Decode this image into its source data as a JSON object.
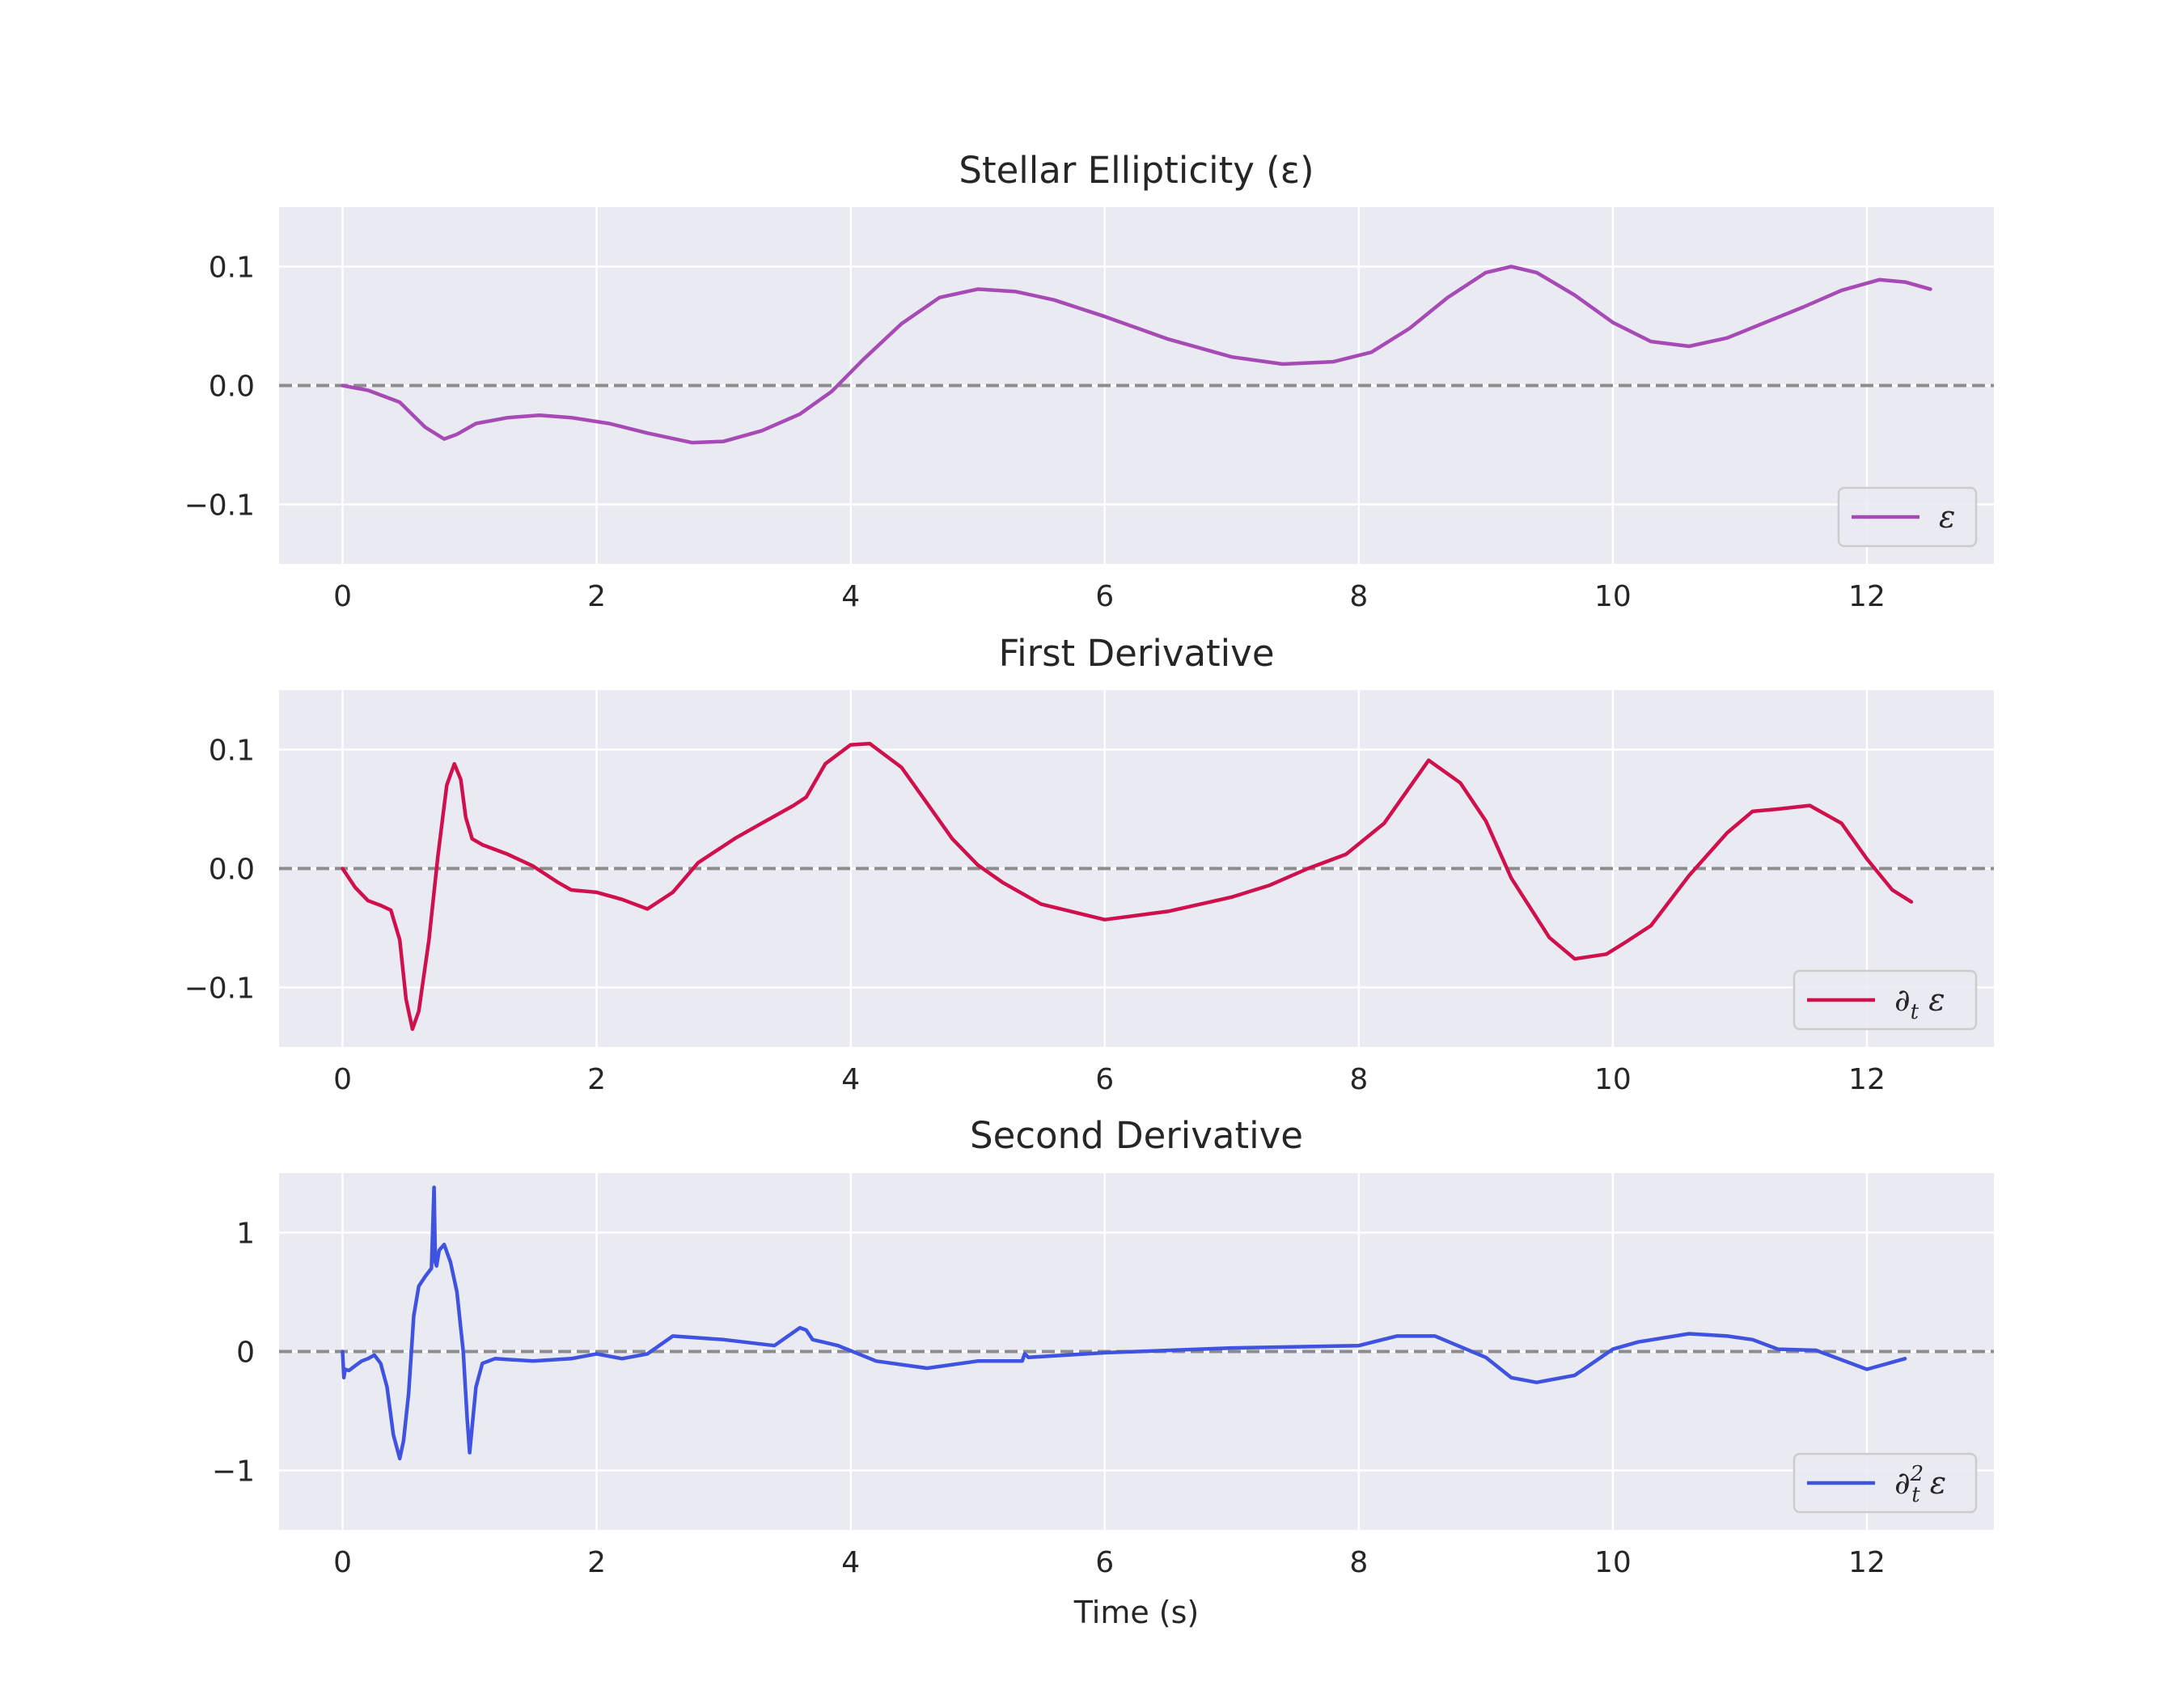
{
  "chart_data": [
    {
      "type": "line",
      "title": "Stellar Ellipticity (ε)",
      "xlabel": "",
      "ylabel": "",
      "xlim": [
        -0.5,
        13.0
      ],
      "ylim": [
        -0.15,
        0.15
      ],
      "xticks": [
        0,
        2,
        4,
        6,
        8,
        10,
        12
      ],
      "yticks": [
        -0.1,
        0.0,
        0.1
      ],
      "ytick_labels": [
        "−0.1",
        "0.0",
        "0.1"
      ],
      "grid": true,
      "reference_line": {
        "y": 0,
        "style": "dashed",
        "color": "#8c8c8c"
      },
      "legend": {
        "placement": "lower-right",
        "label": "ε"
      },
      "series": [
        {
          "name": "ε",
          "color": "#a64bb5",
          "x": [
            0,
            0.2,
            0.45,
            0.65,
            0.8,
            0.9,
            1.05,
            1.3,
            1.55,
            1.8,
            2.1,
            2.4,
            2.75,
            3.0,
            3.3,
            3.6,
            3.85,
            4.1,
            4.4,
            4.7,
            5.0,
            5.3,
            5.6,
            6.0,
            6.5,
            7.0,
            7.4,
            7.8,
            8.1,
            8.4,
            8.7,
            9.0,
            9.2,
            9.4,
            9.7,
            10.0,
            10.3,
            10.6,
            10.9,
            11.2,
            11.5,
            11.8,
            12.1,
            12.3,
            12.5
          ],
          "values": [
            0.0,
            -0.004,
            -0.014,
            -0.035,
            -0.045,
            -0.041,
            -0.032,
            -0.027,
            -0.025,
            -0.027,
            -0.032,
            -0.04,
            -0.048,
            -0.047,
            -0.038,
            -0.024,
            -0.005,
            0.022,
            0.052,
            0.074,
            0.081,
            0.079,
            0.072,
            0.058,
            0.039,
            0.024,
            0.018,
            0.02,
            0.028,
            0.048,
            0.074,
            0.095,
            0.1,
            0.095,
            0.076,
            0.053,
            0.037,
            0.033,
            0.04,
            0.053,
            0.066,
            0.08,
            0.089,
            0.087,
            0.081
          ]
        }
      ]
    },
    {
      "type": "line",
      "title": "First Derivative",
      "xlabel": "",
      "ylabel": "",
      "xlim": [
        -0.5,
        13.0
      ],
      "ylim": [
        -0.15,
        0.15
      ],
      "xticks": [
        0,
        2,
        4,
        6,
        8,
        10,
        12
      ],
      "yticks": [
        -0.1,
        0.0,
        0.1
      ],
      "ytick_labels": [
        "−0.1",
        "0.0",
        "0.1"
      ],
      "grid": true,
      "reference_line": {
        "y": 0,
        "style": "dashed",
        "color": "#8c8c8c"
      },
      "legend": {
        "placement": "lower-right",
        "label": "∂t ε"
      },
      "series": [
        {
          "name": "∂t ε",
          "color": "#d0104c",
          "x": [
            0,
            0.1,
            0.2,
            0.3,
            0.38,
            0.45,
            0.5,
            0.55,
            0.6,
            0.68,
            0.75,
            0.82,
            0.88,
            0.93,
            0.97,
            1.02,
            1.1,
            1.3,
            1.5,
            1.7,
            1.8,
            2.0,
            2.2,
            2.4,
            2.6,
            2.8,
            3.1,
            3.3,
            3.55,
            3.65,
            3.8,
            4.0,
            4.15,
            4.4,
            4.6,
            4.8,
            5.0,
            5.2,
            5.5,
            6.0,
            6.5,
            7.0,
            7.3,
            7.6,
            7.9,
            8.2,
            8.55,
            8.8,
            9.0,
            9.2,
            9.5,
            9.7,
            9.95,
            10.1,
            10.3,
            10.6,
            10.9,
            11.1,
            11.3,
            11.55,
            11.8,
            12.0,
            12.2,
            12.35
          ],
          "values": [
            0.0,
            -0.016,
            -0.027,
            -0.031,
            -0.035,
            -0.06,
            -0.11,
            -0.135,
            -0.12,
            -0.06,
            0.01,
            0.07,
            0.088,
            0.075,
            0.043,
            0.025,
            0.02,
            0.012,
            0.002,
            -0.012,
            -0.018,
            -0.02,
            -0.026,
            -0.034,
            -0.02,
            0.005,
            0.026,
            0.038,
            0.053,
            0.06,
            0.088,
            0.104,
            0.105,
            0.085,
            0.055,
            0.025,
            0.003,
            -0.012,
            -0.03,
            -0.043,
            -0.036,
            -0.024,
            -0.014,
            0.0,
            0.012,
            0.038,
            0.091,
            0.072,
            0.04,
            -0.008,
            -0.058,
            -0.076,
            -0.072,
            -0.062,
            -0.048,
            -0.006,
            0.03,
            0.048,
            0.05,
            0.053,
            0.038,
            0.008,
            -0.018,
            -0.028
          ]
        }
      ]
    },
    {
      "type": "line",
      "title": "Second Derivative",
      "xlabel": "Time (s)",
      "ylabel": "",
      "xlim": [
        -0.5,
        13.0
      ],
      "ylim": [
        -1.5,
        1.5
      ],
      "xticks": [
        0,
        2,
        4,
        6,
        8,
        10,
        12
      ],
      "yticks": [
        -1,
        0,
        1
      ],
      "ytick_labels": [
        "−1",
        "0",
        "1"
      ],
      "grid": true,
      "reference_line": {
        "y": 0,
        "style": "dashed",
        "color": "#8c8c8c"
      },
      "legend": {
        "placement": "lower-right",
        "label": "∂t² ε"
      },
      "series": [
        {
          "name": "∂t² ε",
          "color": "#3f52e0",
          "x": [
            0,
            0.01,
            0.02,
            0.05,
            0.1,
            0.15,
            0.2,
            0.25,
            0.3,
            0.35,
            0.4,
            0.45,
            0.48,
            0.52,
            0.56,
            0.6,
            0.65,
            0.7,
            0.72,
            0.73,
            0.74,
            0.76,
            0.8,
            0.85,
            0.9,
            0.95,
            0.98,
            1.0,
            1.05,
            1.1,
            1.2,
            1.5,
            1.8,
            2.0,
            2.2,
            2.4,
            2.6,
            3.0,
            3.4,
            3.6,
            3.65,
            3.7,
            3.9,
            4.2,
            4.6,
            5.0,
            5.35,
            5.37,
            5.4,
            6.0,
            7.0,
            8.0,
            8.3,
            8.6,
            9.0,
            9.2,
            9.4,
            9.7,
            10.0,
            10.2,
            10.6,
            10.9,
            11.1,
            11.3,
            11.6,
            12.0,
            12.3
          ],
          "values": [
            0.0,
            -0.22,
            -0.15,
            -0.16,
            -0.12,
            -0.08,
            -0.06,
            -0.03,
            -0.1,
            -0.3,
            -0.7,
            -0.9,
            -0.75,
            -0.35,
            0.3,
            0.55,
            0.63,
            0.7,
            1.38,
            0.75,
            0.72,
            0.85,
            0.9,
            0.75,
            0.5,
            0.0,
            -0.55,
            -0.85,
            -0.3,
            -0.1,
            -0.06,
            -0.08,
            -0.06,
            -0.02,
            -0.06,
            -0.02,
            0.13,
            0.1,
            0.05,
            0.2,
            0.18,
            0.1,
            0.05,
            -0.08,
            -0.14,
            -0.08,
            -0.08,
            -0.02,
            -0.05,
            -0.01,
            0.03,
            0.05,
            0.13,
            0.13,
            -0.05,
            -0.22,
            -0.26,
            -0.2,
            0.02,
            0.08,
            0.15,
            0.13,
            0.1,
            0.02,
            0.01,
            -0.15,
            -0.06
          ]
        }
      ]
    }
  ]
}
